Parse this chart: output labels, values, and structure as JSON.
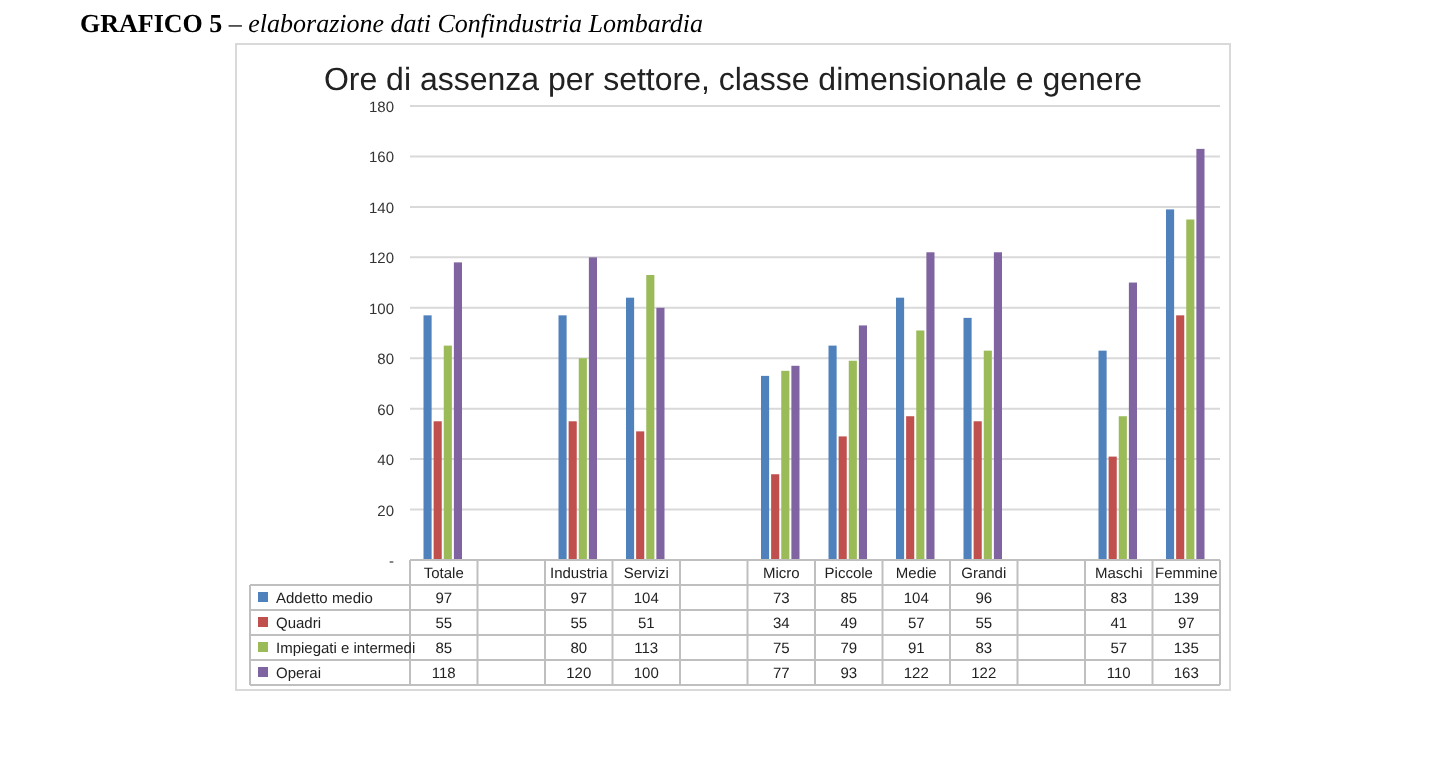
{
  "chart_data": {
    "type": "bar",
    "title": "Ore di assenza per settore, classe dimensionale e genere",
    "annotations": [
      "GRAFICO 5",
      "– elaborazione dati Confindustria Lombardia"
    ],
    "categories": [
      "Totale",
      null,
      "Industria",
      "Servizi",
      null,
      "Micro",
      "Piccole",
      "Medie",
      "Grandi",
      null,
      "Maschi",
      "Femmine"
    ],
    "series": [
      {
        "name": "Addetto medio",
        "color": "#4f81bd",
        "values": [
          97,
          null,
          97,
          104,
          null,
          73,
          85,
          104,
          96,
          null,
          83,
          139
        ]
      },
      {
        "name": "Quadri",
        "color": "#c0504d",
        "values": [
          55,
          null,
          55,
          51,
          null,
          34,
          49,
          57,
          55,
          null,
          41,
          97
        ]
      },
      {
        "name": "Impiegati e intermedi",
        "color": "#9bbb59",
        "values": [
          85,
          null,
          80,
          113,
          null,
          75,
          79,
          91,
          83,
          null,
          57,
          135
        ]
      },
      {
        "name": "Operai",
        "color": "#8064a2",
        "values": [
          118,
          null,
          120,
          100,
          null,
          77,
          93,
          122,
          122,
          null,
          110,
          163
        ]
      }
    ],
    "ylim": [
      0,
      180
    ],
    "yticks": [
      {
        "value": 0,
        "label": "-"
      },
      20,
      40,
      60,
      80,
      100,
      120,
      140,
      160,
      180
    ],
    "grid": "y",
    "legend": "bottom left",
    "data_labels": true
  }
}
